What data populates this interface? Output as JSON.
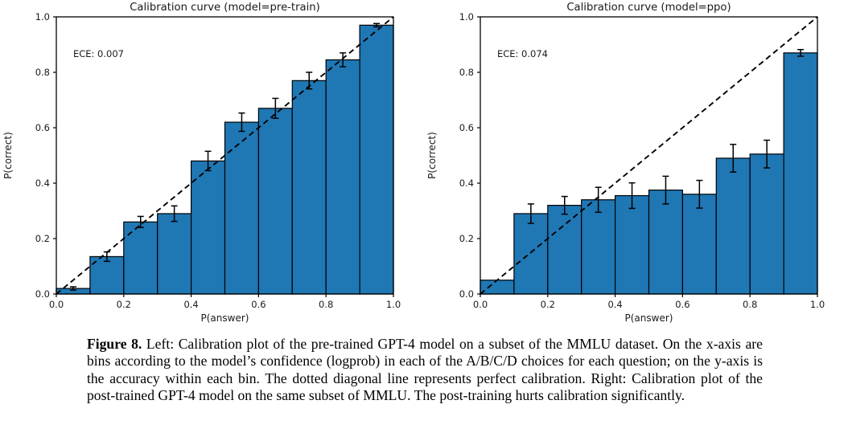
{
  "caption": {
    "label": "Figure 8.",
    "text": " Left: Calibration plot of the pre-trained GPT-4 model on a subset of the MMLU dataset. On the x-axis are bins according to the model’s confidence (logprob) in each of the A/B/C/D choices for each question; on the y-axis is the accuracy within each bin. The dotted diagonal line represents perfect calibration. Right: Calibration plot of the post-trained GPT-4 model on the same subset of MMLU. The post-training hurts calibration significantly."
  },
  "chart_data": [
    {
      "type": "bar",
      "title": "Calibration curve (model=pre-train)",
      "annotation": "ECE: 0.007",
      "xlabel": "P(answer)",
      "ylabel": "P(correct)",
      "xlim": [
        0.0,
        1.0
      ],
      "ylim": [
        0.0,
        1.0
      ],
      "xticks": [
        "0.0",
        "0.2",
        "0.4",
        "0.6",
        "0.8",
        "1.0"
      ],
      "yticks": [
        "0.0",
        "0.2",
        "0.4",
        "0.6",
        "0.8",
        "1.0"
      ],
      "bin_edges": [
        0.0,
        0.1,
        0.2,
        0.3,
        0.4,
        0.5,
        0.6,
        0.7,
        0.8,
        0.9,
        1.0
      ],
      "values": [
        0.02,
        0.135,
        0.26,
        0.29,
        0.48,
        0.62,
        0.67,
        0.77,
        0.845,
        0.97
      ],
      "errors": [
        0.006,
        0.017,
        0.02,
        0.028,
        0.035,
        0.033,
        0.036,
        0.03,
        0.025,
        0.006
      ],
      "bar_color": "#1f77b4",
      "bar_edge_color": "#000000",
      "diagonal": {
        "style": "dashed",
        "from": [
          0,
          0
        ],
        "to": [
          1,
          1
        ],
        "color": "#000000"
      },
      "grid": false,
      "legend": null
    },
    {
      "type": "bar",
      "title": "Calibration curve (model=ppo)",
      "annotation": "ECE: 0.074",
      "xlabel": "P(answer)",
      "ylabel": "P(correct)",
      "xlim": [
        0.0,
        1.0
      ],
      "ylim": [
        0.0,
        1.0
      ],
      "xticks": [
        "0.0",
        "0.2",
        "0.4",
        "0.6",
        "0.8",
        "1.0"
      ],
      "yticks": [
        "0.0",
        "0.2",
        "0.4",
        "0.6",
        "0.8",
        "1.0"
      ],
      "bin_edges": [
        0.0,
        0.1,
        0.2,
        0.3,
        0.4,
        0.5,
        0.6,
        0.7,
        0.8,
        0.9,
        1.0
      ],
      "values": [
        0.05,
        0.29,
        0.32,
        0.34,
        0.355,
        0.375,
        0.36,
        0.49,
        0.505,
        0.87
      ],
      "errors": [
        null,
        0.035,
        0.032,
        0.045,
        0.046,
        0.05,
        0.05,
        0.05,
        0.05,
        0.012
      ],
      "bar_color": "#1f77b4",
      "bar_edge_color": "#000000",
      "diagonal": {
        "style": "dashed",
        "from": [
          0,
          0
        ],
        "to": [
          1,
          1
        ],
        "color": "#000000"
      },
      "grid": false,
      "legend": null
    }
  ]
}
